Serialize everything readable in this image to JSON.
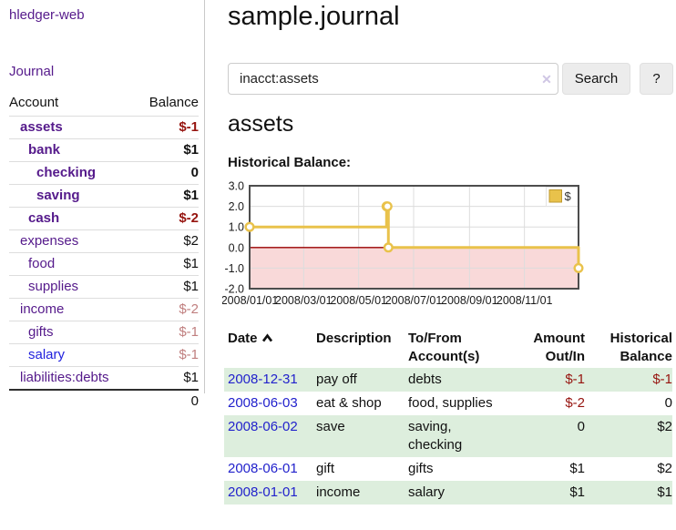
{
  "colors": {
    "link_purple": "#551a8b",
    "link_blue": "#2222cc",
    "negative_dark_red": "#96140f",
    "negative_muted_red": "#c07f7f",
    "row_stripe_green": "#ddeedd",
    "chart_gold": "#E9C24B",
    "chart_negative_fill": "#F9D9D9",
    "chart_zero_line": "#990000"
  },
  "sidebar": {
    "app_title": "hledger-web",
    "journal_link": "Journal",
    "table": {
      "headers": {
        "account": "Account",
        "balance": "Balance"
      },
      "rows": [
        {
          "name": "assets",
          "level": 1,
          "bold": true,
          "link_color": "purple",
          "balance": "$-1",
          "balance_style": "neg-bold"
        },
        {
          "name": "bank",
          "level": 2,
          "bold": true,
          "link_color": "purple",
          "balance": "$1",
          "balance_style": "bold"
        },
        {
          "name": "checking",
          "level": 3,
          "bold": true,
          "link_color": "purple",
          "balance": "0",
          "balance_style": "bold"
        },
        {
          "name": "saving",
          "level": 3,
          "bold": true,
          "link_color": "purple",
          "balance": "$1",
          "balance_style": "bold"
        },
        {
          "name": "cash",
          "level": 2,
          "bold": true,
          "link_color": "purple",
          "balance": "$-2",
          "balance_style": "neg-bold"
        },
        {
          "name": "expenses",
          "level": 1,
          "bold": false,
          "link_color": "purple",
          "balance": "$2",
          "balance_style": "plain"
        },
        {
          "name": "food",
          "level": 2,
          "bold": false,
          "link_color": "purple",
          "balance": "$1",
          "balance_style": "plain"
        },
        {
          "name": "supplies",
          "level": 2,
          "bold": false,
          "link_color": "purple",
          "balance": "$1",
          "balance_style": "plain"
        },
        {
          "name": "income",
          "level": 1,
          "bold": false,
          "link_color": "purple",
          "balance": "$-2",
          "balance_style": "neg"
        },
        {
          "name": "gifts",
          "level": 2,
          "bold": false,
          "link_color": "purple",
          "balance": "$-1",
          "balance_style": "neg"
        },
        {
          "name": "salary",
          "level": 2,
          "bold": false,
          "link_color": "blue",
          "balance": "$-1",
          "balance_style": "neg"
        },
        {
          "name": "liabilities:debts",
          "level": 1,
          "bold": false,
          "link_color": "purple",
          "balance": "$1",
          "balance_style": "plain"
        }
      ],
      "total": "0"
    }
  },
  "main": {
    "title": "sample.journal",
    "search": {
      "value": "inacct:assets",
      "clear_icon": "✕",
      "search_button": "Search",
      "help_button": "?"
    },
    "account_heading": "assets",
    "chart_label": "Historical Balance:"
  },
  "chart_data": {
    "type": "line",
    "title": "Historical Balance",
    "step": true,
    "series": [
      {
        "name": "$",
        "color": "#E9C24B",
        "points": [
          [
            "2008-01-01",
            1
          ],
          [
            "2008-06-01",
            2
          ],
          [
            "2008-06-02",
            2
          ],
          [
            "2008-06-03",
            0
          ],
          [
            "2008-12-31",
            -1
          ]
        ]
      }
    ],
    "x_range": [
      "2008-01-01",
      "2008-12-31"
    ],
    "x_ticks": [
      {
        "date": "2008-01-01",
        "label": "2008/01/01"
      },
      {
        "date": "2008-03-01",
        "label": "2008/03/01"
      },
      {
        "date": "2008-05-01",
        "label": "2008/05/01"
      },
      {
        "date": "2008-07-01",
        "label": "2008/07/01"
      },
      {
        "date": "2008-09-01",
        "label": "2008/09/01"
      },
      {
        "date": "2008-11-01",
        "label": "2008/11/01"
      }
    ],
    "y_ticks": [
      "3.0",
      "2.0",
      "1.0",
      "0.0",
      "-1.0",
      "-2.0"
    ],
    "ylim": [
      -2,
      3
    ],
    "grid": true,
    "legend_position": "top-right",
    "legend_label": "$",
    "negative_fill": "#F9D9D9",
    "zero_line_color": "#990000"
  },
  "txn_table": {
    "headers": [
      {
        "label": "Date",
        "sorted": "ascending"
      },
      {
        "label": "Description"
      },
      {
        "label": "To/From Account(s)"
      },
      {
        "label": "Amount Out/In",
        "align": "right"
      },
      {
        "label": "Historical Balance",
        "align": "right"
      }
    ],
    "rows": [
      {
        "date": "2008-12-31",
        "description": "pay off",
        "accounts": "debts",
        "amount": "$-1",
        "balance": "$-1"
      },
      {
        "date": "2008-06-03",
        "description": "eat & shop",
        "accounts": "food, supplies",
        "amount": "$-2",
        "balance": "0"
      },
      {
        "date": "2008-06-02",
        "description": "save",
        "accounts": "saving, checking",
        "amount": "0",
        "balance": "$2"
      },
      {
        "date": "2008-06-01",
        "description": "gift",
        "accounts": "gifts",
        "amount": "$1",
        "balance": "$2"
      },
      {
        "date": "2008-01-01",
        "description": "income",
        "accounts": "salary",
        "amount": "$1",
        "balance": "$1"
      }
    ]
  }
}
